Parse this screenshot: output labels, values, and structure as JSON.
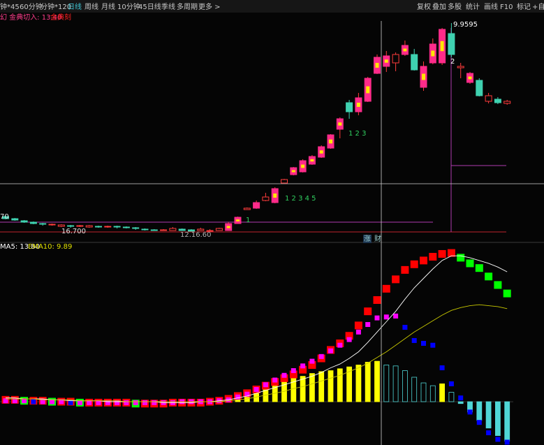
{
  "toolbar": {
    "left": [
      "钟*45",
      "60分钟",
      "分钟*120",
      "日线",
      "周线",
      "月线",
      "10分钟",
      "45日线",
      "季线",
      "多周期",
      "更多 >"
    ],
    "right": [
      "复权",
      "叠加",
      "多股",
      "统计",
      "画线",
      "F10",
      "标记",
      "+自"
    ]
  },
  "signal_header": [
    "幻 金典切入: 13.40",
    "金典刻"
  ],
  "side_tabs": [
    "涨",
    "财"
  ],
  "chart_data": [
    {
      "type": "candlestick",
      "open": [
        18.7,
        18.4,
        18.1,
        17.9,
        17.7,
        17.5,
        17.3,
        17.4,
        17.3,
        17.2,
        17.3,
        17.2,
        17.3,
        17.2,
        17.1,
        16.9,
        16.8,
        16.7,
        16.7,
        16.9,
        16.8,
        16.7,
        16.6,
        16.7,
        16.7,
        17.7,
        19.7,
        19.9,
        21.0,
        20.7,
        23.5,
        24.7,
        25.1,
        26.2,
        27.2,
        28.5,
        31.2,
        35.0,
        33.7,
        35.2,
        39.2,
        40.2,
        40.7,
        41.9,
        41.9,
        37.2,
        40.7,
        40.7,
        44.9,
        40.0,
        37.9,
        38.2,
        35.2,
        35.5,
        34.9
      ],
      "high": [
        18.9,
        18.5,
        18.2,
        18.0,
        17.8,
        17.7,
        17.6,
        17.5,
        17.5,
        17.5,
        17.4,
        17.4,
        17.4,
        17.3,
        17.2,
        17.0,
        16.9,
        16.9,
        17.2,
        17.0,
        16.9,
        17.1,
        16.9,
        17.1,
        17.9,
        18.7,
        20.0,
        21.0,
        22.1,
        22.9,
        24.1,
        25.8,
        26.9,
        27.5,
        28.9,
        30.5,
        32.9,
        35.4,
        36.4,
        38.7,
        41.9,
        42.4,
        42.2,
        43.9,
        42.7,
        40.9,
        44.2,
        45.7,
        46.4,
        40.7,
        39.4,
        38.5,
        36.4,
        35.8,
        35.4
      ],
      "low": [
        18.3,
        18.1,
        17.8,
        17.6,
        17.4,
        17.4,
        17.2,
        17.1,
        17.2,
        17.1,
        17.1,
        17.1,
        17.0,
        17.0,
        16.8,
        16.7,
        16.7,
        16.7,
        16.7,
        16.7,
        16.7,
        16.7,
        16.7,
        16.7,
        16.7,
        17.7,
        19.7,
        19.8,
        20.9,
        20.6,
        23.5,
        24.6,
        25.0,
        26.1,
        27.1,
        28.4,
        29.9,
        32.7,
        33.2,
        35.1,
        39.1,
        39.4,
        39.5,
        41.7,
        39.6,
        36.7,
        40.5,
        40.4,
        41.5,
        38.5,
        37.7,
        35.9,
        34.9,
        34.8,
        34.7
      ],
      "close": [
        18.4,
        18.2,
        17.9,
        17.7,
        17.6,
        17.6,
        17.5,
        17.3,
        17.4,
        17.4,
        17.2,
        17.3,
        17.2,
        17.1,
        17.0,
        16.8,
        16.7,
        16.8,
        17.0,
        16.7,
        16.6,
        16.9,
        16.7,
        17.0,
        17.7,
        18.6,
        19.9,
        20.7,
        21.5,
        22.7,
        24.0,
        25.7,
        26.7,
        27.3,
        28.7,
        30.4,
        32.7,
        33.7,
        35.7,
        38.5,
        41.5,
        41.7,
        41.9,
        43.2,
        39.7,
        40.2,
        43.4,
        45.5,
        41.9,
        40.2,
        39.2,
        36.0,
        36.0,
        35.0,
        35.2
      ],
      "ylim": [
        15.7,
        47.7
      ],
      "up_color": "#ff3b3b",
      "down_color": "#3fd1b0",
      "signal_color": "#ff2b8a",
      "annotations": [
        "9.9595",
        "2",
        "1   2   3",
        "1   2   3   4   5",
        "1",
        "16.700",
        "12.16.60",
        "70"
      ]
    },
    {
      "type": "indicator",
      "legend": [
        "MA5: 13.80",
        "EMA10: 9.89"
      ],
      "ylim": [
        -4.6,
        16.7
      ],
      "series": [
        {
          "type": "bar",
          "colors": [
            "#ffff00",
            "#4fd6d6"
          ],
          "values": [
            0.1,
            0.1,
            0.0,
            -0.1,
            -0.1,
            0.0,
            0.1,
            0.1,
            0.0,
            -0.1,
            -0.1,
            0.0,
            0.0,
            0.1,
            0.0,
            -0.1,
            -0.1,
            0.0,
            0.1,
            0.1,
            0.0,
            0.0,
            -0.1,
            0.0,
            0.3,
            0.7,
            1.1,
            1.4,
            1.9,
            2.1,
            2.4,
            2.6,
            2.7,
            3.0,
            3.2,
            3.3,
            3.5,
            3.7,
            3.9,
            4.2,
            4.3,
            3.9,
            3.8,
            3.3,
            2.6,
            2.0,
            1.7,
            1.9,
            1.0,
            -0.2,
            -1.1,
            -2.0,
            -2.8,
            -3.6,
            -4.2
          ]
        },
        {
          "type": "square",
          "colors": [
            "#ff0000",
            "#00ff00"
          ],
          "values": [
            0.2,
            0.2,
            0.1,
            0.1,
            0.1,
            0.0,
            0.0,
            0.0,
            -0.1,
            -0.1,
            -0.1,
            -0.1,
            -0.1,
            -0.1,
            -0.2,
            -0.2,
            -0.2,
            -0.2,
            -0.1,
            -0.1,
            -0.1,
            -0.1,
            0.0,
            0.1,
            0.3,
            0.6,
            0.9,
            1.3,
            1.7,
            2.1,
            2.5,
            2.9,
            3.4,
            3.9,
            4.6,
            5.5,
            6.2,
            7.0,
            8.1,
            9.6,
            10.8,
            12.0,
            13.0,
            14.0,
            14.6,
            15.0,
            15.4,
            15.7,
            15.8,
            15.3,
            14.7,
            14.2,
            13.3,
            12.4,
            11.5
          ]
        },
        {
          "type": "square",
          "colors": [
            "#ff00ff",
            "#0000ff"
          ],
          "values": [
            0.1,
            0.1,
            0.1,
            0.0,
            0.0,
            0.0,
            0.0,
            -0.1,
            -0.1,
            -0.1,
            -0.1,
            -0.1,
            -0.1,
            -0.1,
            -0.1,
            -0.1,
            -0.1,
            -0.1,
            -0.1,
            0.0,
            0.0,
            0.0,
            0.0,
            0.1,
            0.2,
            0.5,
            0.8,
            1.3,
            1.8,
            2.3,
            2.8,
            3.3,
            3.8,
            4.3,
            4.8,
            5.4,
            6.0,
            6.6,
            7.4,
            8.2,
            8.9,
            9.0,
            9.1,
            7.9,
            6.5,
            6.2,
            6.0,
            3.6,
            1.9,
            0.4,
            -1.1,
            -2.2,
            -3.3,
            -4.0,
            -4.3
          ]
        },
        {
          "type": "line",
          "color": "#ffffff",
          "values": [
            0.4,
            0.4,
            0.3,
            0.3,
            0.3,
            0.2,
            0.2,
            0.1,
            0.1,
            0.1,
            0.1,
            0.0,
            0.0,
            0.0,
            0.0,
            0.0,
            0.0,
            -0.1,
            -0.1,
            -0.1,
            -0.1,
            0.0,
            0.0,
            0.1,
            0.2,
            0.4,
            0.6,
            0.9,
            1.2,
            1.5,
            1.8,
            2.1,
            2.4,
            2.7,
            3.1,
            3.6,
            4.0,
            4.6,
            5.3,
            6.3,
            7.4,
            8.5,
            9.6,
            10.9,
            12.1,
            13.1,
            14.1,
            15.0,
            15.5,
            15.5,
            15.3,
            15.0,
            14.7,
            14.3,
            13.8
          ]
        },
        {
          "type": "line",
          "color": "#c8c800",
          "values": [
            0.3,
            0.3,
            0.3,
            0.3,
            0.2,
            0.2,
            0.2,
            0.2,
            0.1,
            0.1,
            0.1,
            0.1,
            0.1,
            0.0,
            0.0,
            0.0,
            0.0,
            0.0,
            0.0,
            0.0,
            0.0,
            0.0,
            0.0,
            0.0,
            0.1,
            0.2,
            0.3,
            0.5,
            0.7,
            0.9,
            1.1,
            1.4,
            1.6,
            1.9,
            2.2,
            2.5,
            2.8,
            3.2,
            3.6,
            4.1,
            4.7,
            5.3,
            6.0,
            6.7,
            7.4,
            8.0,
            8.6,
            9.2,
            9.7,
            10.0,
            10.2,
            10.3,
            10.2,
            10.1,
            9.89
          ]
        }
      ]
    }
  ]
}
